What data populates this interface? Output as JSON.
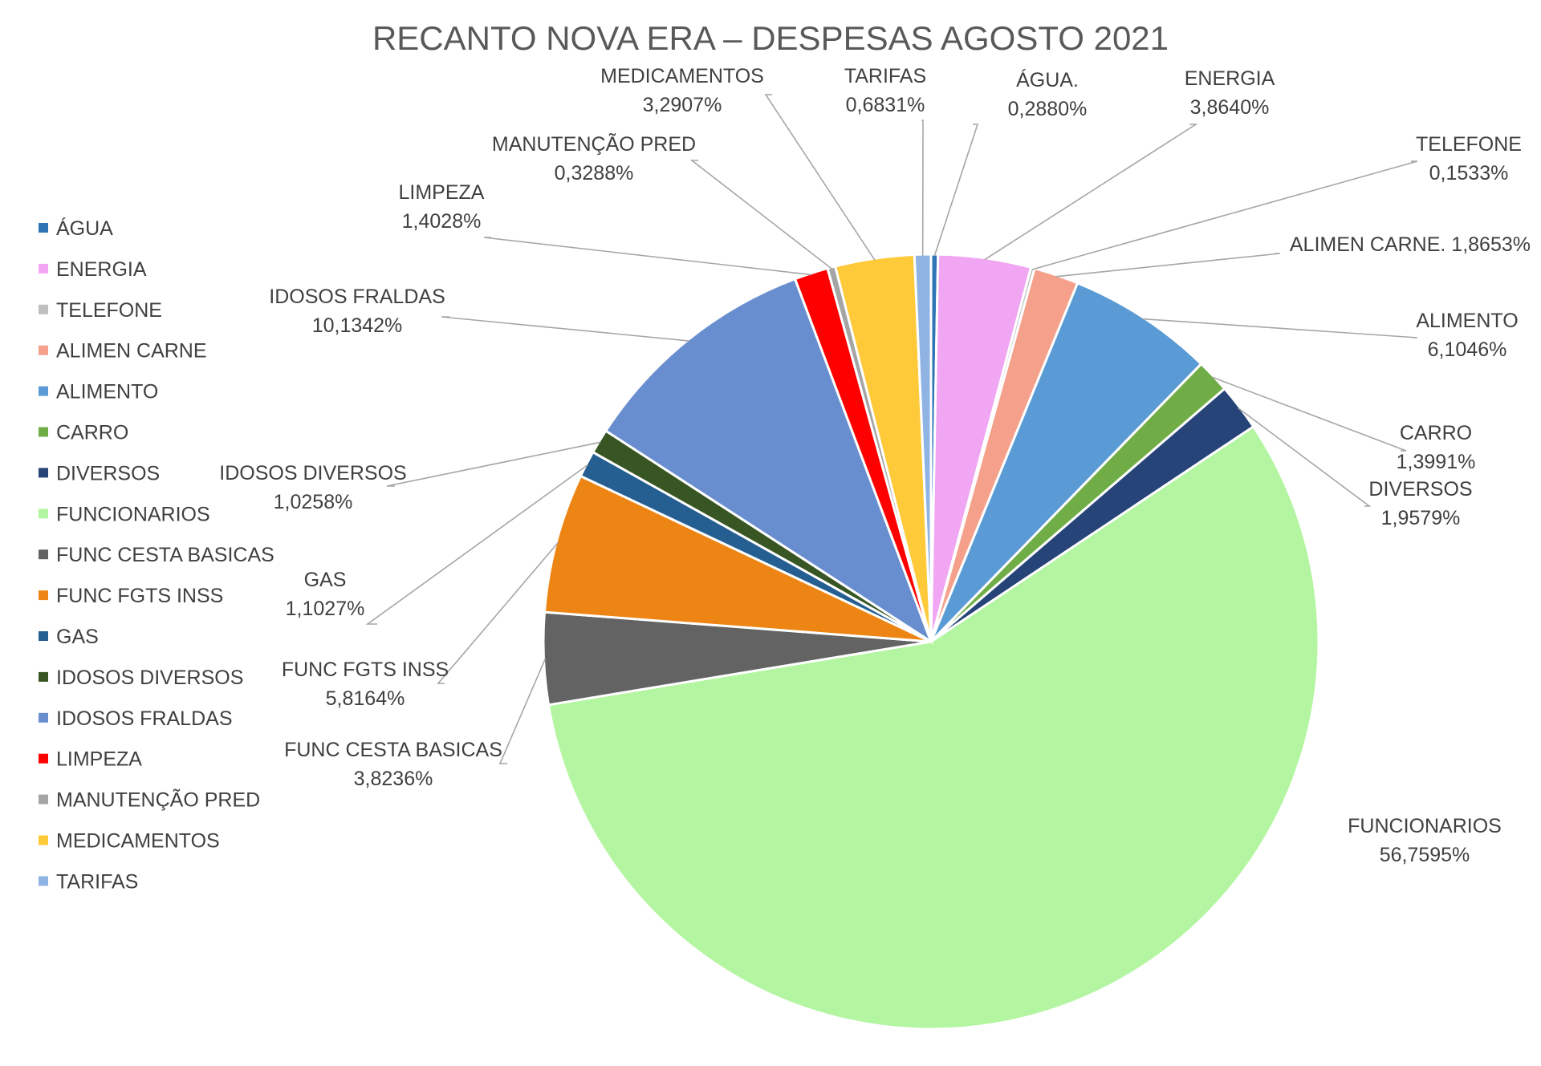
{
  "chart_data": {
    "type": "pie",
    "title": "RECANTO NOVA ERA – DESPESAS AGOSTO 2021",
    "legend_position": "left",
    "start_angle_deg": 0,
    "direction": "clockwise",
    "slices": [
      {
        "legend": "ÁGUA",
        "label": "ÁGUA.",
        "value": 0.288,
        "value_text": "0,2880%",
        "color": "#2e75b6"
      },
      {
        "legend": "ENERGIA",
        "label": "ENERGIA",
        "value": 3.864,
        "value_text": "3,8640%",
        "color": "#f0a6f2"
      },
      {
        "legend": "TELEFONE",
        "label": "TELEFONE",
        "value": 0.1533,
        "value_text": "0,1533%",
        "color": "#bfbfbf"
      },
      {
        "legend": "ALIMEN CARNE",
        "label": "ALIMEN CARNE.",
        "value": 1.8653,
        "value_text": "1,8653%",
        "color": "#f4a08a"
      },
      {
        "legend": "ALIMENTO",
        "label": "ALIMENTO",
        "value": 6.1046,
        "value_text": "6,1046%",
        "color": "#5b9bd5"
      },
      {
        "legend": "CARRO",
        "label": "CARRO",
        "value": 1.3991,
        "value_text": "1,3991%",
        "color": "#70ad47"
      },
      {
        "legend": "DIVERSOS",
        "label": "DIVERSOS",
        "value": 1.9579,
        "value_text": "1,9579%",
        "color": "#264478"
      },
      {
        "legend": "FUNCIONARIOS",
        "label": "FUNCIONARIOS",
        "value": 56.7595,
        "value_text": "56,7595%",
        "color": "#b3f5a0"
      },
      {
        "legend": "FUNC CESTA BASICAS",
        "label": "FUNC CESTA BASICAS",
        "value": 3.8236,
        "value_text": "3,8236%",
        "color": "#636363"
      },
      {
        "legend": "FUNC FGTS INSS",
        "label": "FUNC FGTS INSS",
        "value": 5.8164,
        "value_text": "5,8164%",
        "color": "#ed8515"
      },
      {
        "legend": "GAS",
        "label": "GAS",
        "value": 1.1027,
        "value_text": "1,1027%",
        "color": "#255e91"
      },
      {
        "legend": "IDOSOS DIVERSOS",
        "label": "IDOSOS DIVERSOS",
        "value": 1.0258,
        "value_text": "1,0258%",
        "color": "#375623"
      },
      {
        "legend": "IDOSOS FRALDAS",
        "label": "IDOSOS FRALDAS",
        "value": 10.1342,
        "value_text": "10,1342%",
        "color": "#698ed0"
      },
      {
        "legend": "LIMPEZA",
        "label": "LIMPEZA",
        "value": 1.4028,
        "value_text": "1,4028%",
        "color": "#ff0000"
      },
      {
        "legend": "MANUTENÇÃO PRED",
        "label": "MANUTENÇÃO PRED",
        "value": 0.3288,
        "value_text": "0,3288%",
        "color": "#a5a5a5"
      },
      {
        "legend": "MEDICAMENTOS",
        "label": "MEDICAMENTOS",
        "value": 3.2907,
        "value_text": "3,2907%",
        "color": "#ffca3a"
      },
      {
        "legend": "TARIFAS",
        "label": "TARIFAS",
        "value": 0.6831,
        "value_text": "0,6831%",
        "color": "#8fb4e3"
      }
    ]
  }
}
